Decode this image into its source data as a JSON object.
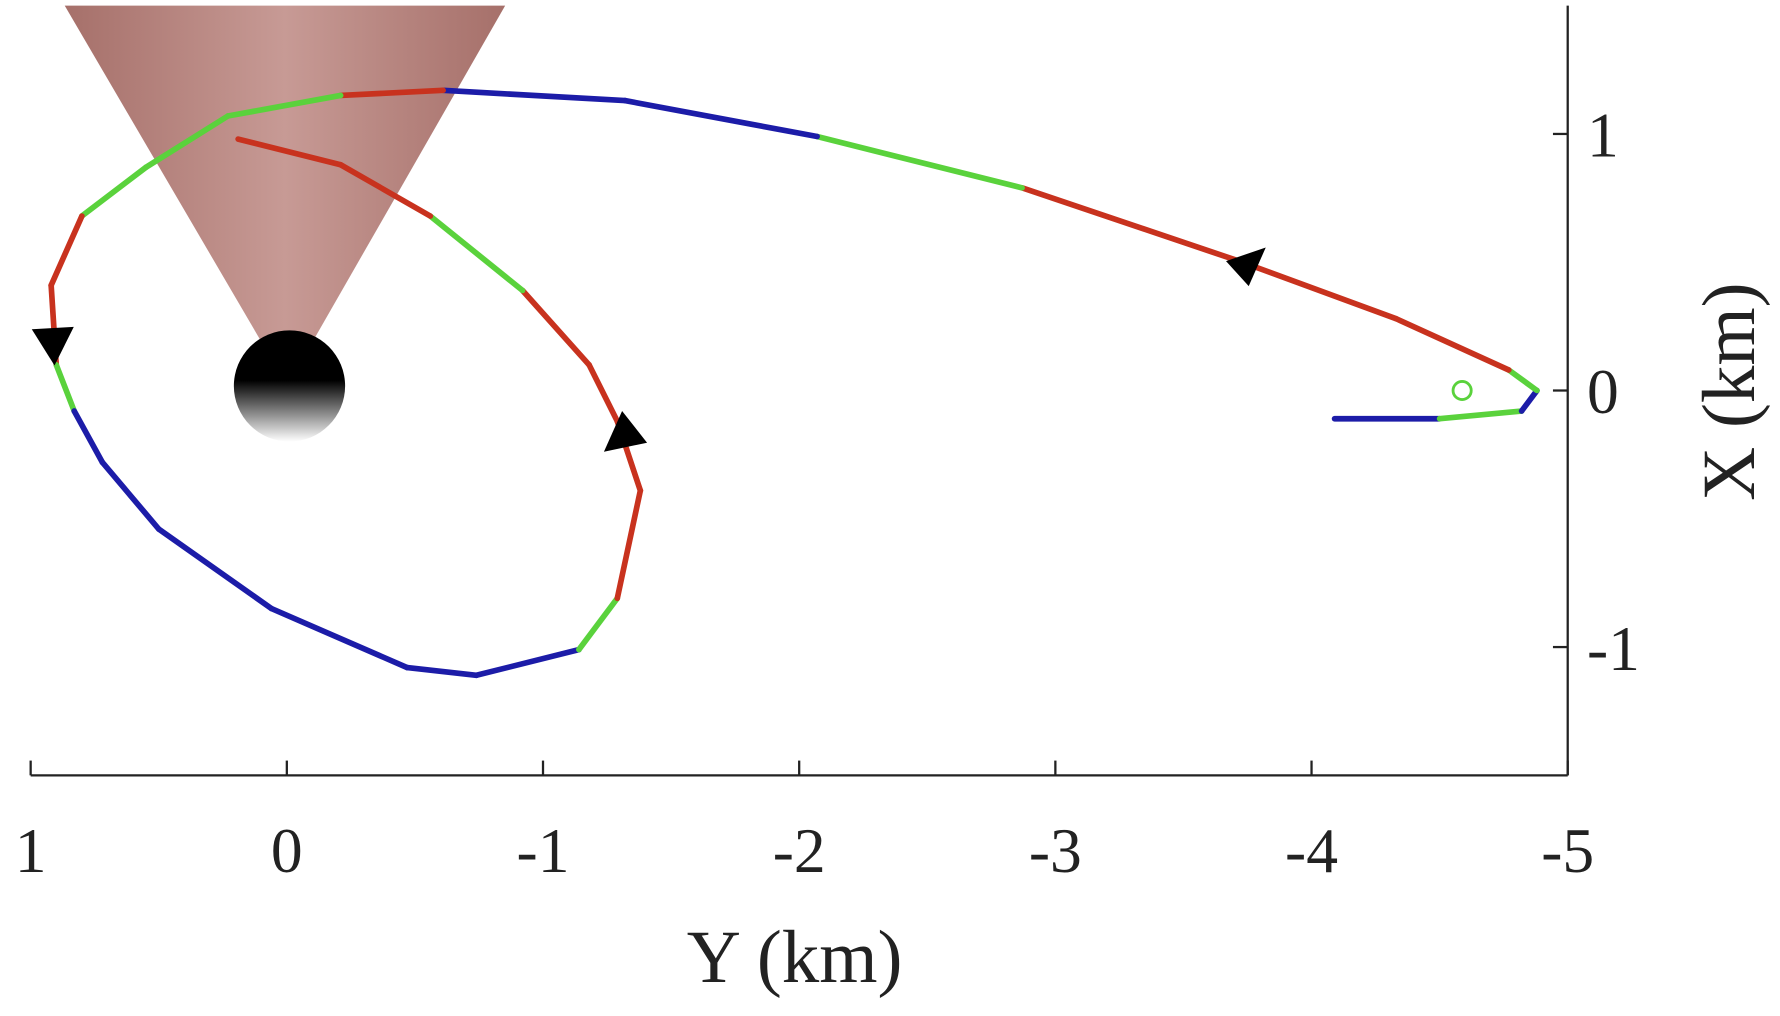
{
  "chart_data": {
    "type": "line",
    "xlabel": "Y (km)",
    "ylabel": "X (km)",
    "xlim": [
      1,
      -5
    ],
    "ylim": [
      -1.5,
      1.5
    ],
    "xticks": [
      1,
      0,
      -1,
      -2,
      -3,
      -4,
      -5
    ],
    "yticks": [
      1,
      0,
      -1
    ],
    "series": [
      {
        "color": "#1c1ca8",
        "x": [
          -4.09,
          -4.5,
          -4.82,
          -4.88,
          -4.77,
          -4.33,
          -3.73,
          -2.87,
          -2.07,
          -1.32,
          -0.61,
          -0.21,
          0.23,
          0.55,
          0.8,
          0.92,
          0.9,
          0.83,
          0.72,
          0.5,
          0.06,
          -0.47,
          -0.74,
          -1.14,
          -1.29,
          -1.38,
          -1.29,
          -1.18,
          -0.92,
          -0.56,
          -0.21,
          0.19
        ],
        "values": [
          -0.11,
          -0.11,
          -0.08,
          0,
          0.08,
          0.28,
          0.5,
          0.79,
          0.99,
          1.13,
          1.17,
          1.15,
          1.07,
          0.87,
          0.68,
          0.41,
          0.1,
          -0.08,
          -0.28,
          -0.54,
          -0.85,
          -1.08,
          -1.11,
          -1.01,
          -0.81,
          -0.39,
          -0.12,
          0.1,
          0.39,
          0.68,
          0.88,
          0.98
        ],
        "segment_colors": [
          "#1c1ca8",
          "#5ad23c",
          "#1c1ca8",
          "#5ad23c",
          "#c8321e",
          "#c8321e",
          "#c8321e",
          "#5ad23c",
          "#1c1ca8",
          "#1c1ca8",
          "#c8321e",
          "#5ad23c",
          "#5ad23c",
          "#5ad23c",
          "#c8321e",
          "#c8321e",
          "#5ad23c",
          "#1c1ca8",
          "#1c1ca8",
          "#1c1ca8",
          "#1c1ca8",
          "#1c1ca8",
          "#1c1ca8",
          "#5ad23c",
          "#c8321e",
          "#c8321e",
          "#c8321e",
          "#c8321e",
          "#5ad23c",
          "#c8321e",
          "#c8321e",
          "#c8321e"
        ]
      }
    ]
  }
}
